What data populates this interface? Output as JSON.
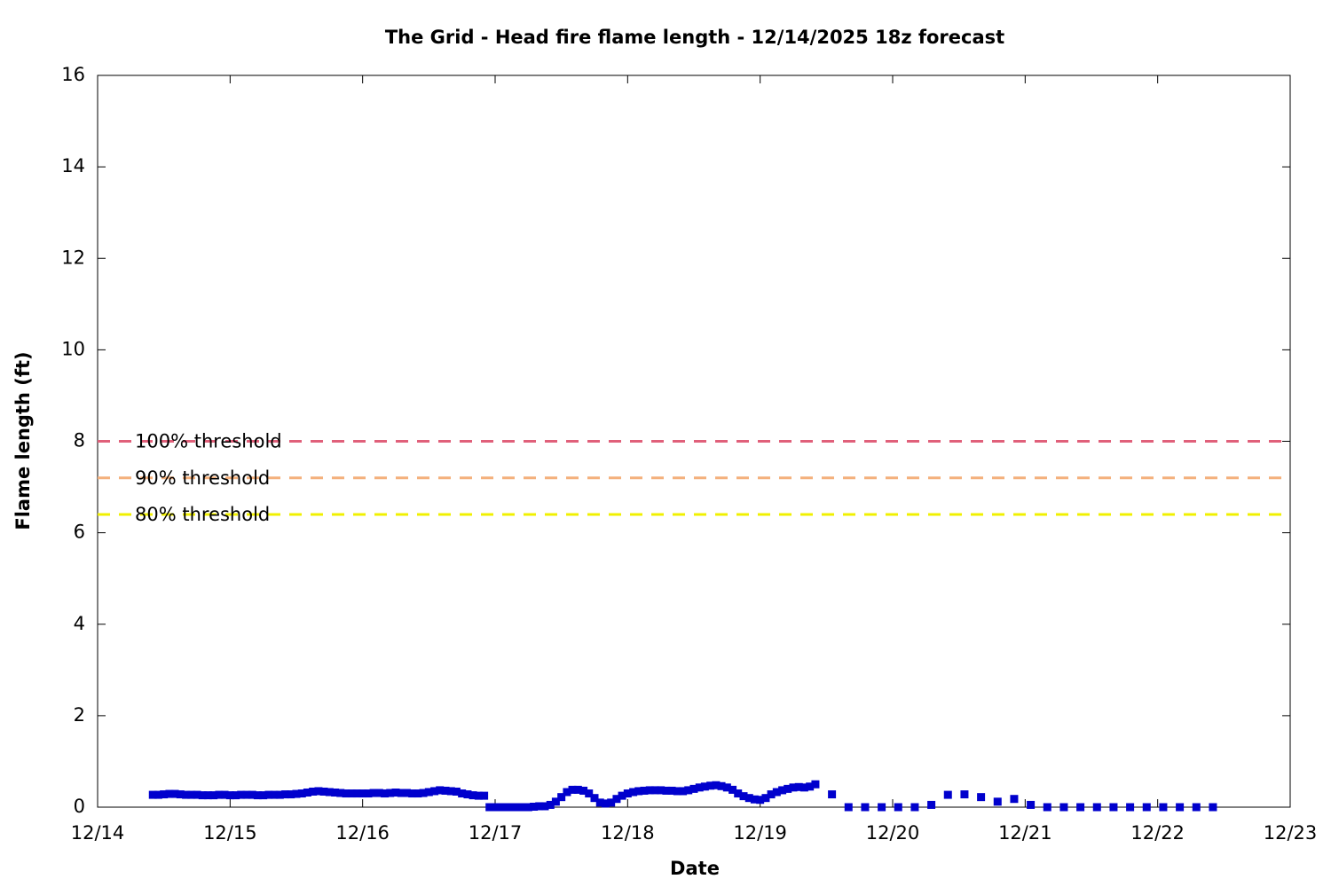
{
  "chart_data": {
    "type": "scatter",
    "title": "The Grid - Head fire flame length - 12/14/2025 18z forecast",
    "x_label": "Date",
    "y_label": "Flame length (ft)",
    "xlim": [
      14,
      23
    ],
    "xticks": [
      {
        "value": 14,
        "label": "12/14"
      },
      {
        "value": 15,
        "label": "12/15"
      },
      {
        "value": 16,
        "label": "12/16"
      },
      {
        "value": 17,
        "label": "12/17"
      },
      {
        "value": 18,
        "label": "12/18"
      },
      {
        "value": 19,
        "label": "12/19"
      },
      {
        "value": 20,
        "label": "12/20"
      },
      {
        "value": 21,
        "label": "12/21"
      },
      {
        "value": 22,
        "label": "12/22"
      },
      {
        "value": 23,
        "label": "12/23"
      }
    ],
    "ylim": [
      0,
      16
    ],
    "yticks": [
      0,
      2,
      4,
      6,
      8,
      10,
      12,
      14,
      16
    ],
    "thresholds": [
      {
        "name": "100% threshold",
        "value": 8,
        "color": "#e0607a"
      },
      {
        "name": "90% threshold",
        "value": 7.2,
        "color": "#f4b07c"
      },
      {
        "name": "80% threshold",
        "value": 6.4,
        "color": "#f0f000"
      }
    ],
    "series": [
      {
        "color": "#0000cd",
        "x": [
          14.417,
          14.458,
          14.5,
          14.542,
          14.583,
          14.625,
          14.667,
          14.708,
          14.75,
          14.792,
          14.833,
          14.875,
          14.917,
          14.958,
          15.0,
          15.042,
          15.083,
          15.125,
          15.167,
          15.208,
          15.25,
          15.292,
          15.333,
          15.375,
          15.417,
          15.458,
          15.5,
          15.542,
          15.583,
          15.625,
          15.667,
          15.708,
          15.75,
          15.792,
          15.833,
          15.875,
          15.917,
          15.958,
          16.0,
          16.042,
          16.083,
          16.125,
          16.167,
          16.208,
          16.25,
          16.292,
          16.333,
          16.375,
          16.417,
          16.458,
          16.5,
          16.542,
          16.583,
          16.625,
          16.667,
          16.708,
          16.75,
          16.792,
          16.833,
          16.875,
          16.917,
          16.958,
          17.0,
          17.042,
          17.083,
          17.125,
          17.167,
          17.208,
          17.25,
          17.292,
          17.333,
          17.375,
          17.417,
          17.458,
          17.5,
          17.542,
          17.583,
          17.625,
          17.667,
          17.708,
          17.75,
          17.792,
          17.833,
          17.875,
          17.917,
          17.958,
          18.0,
          18.042,
          18.083,
          18.125,
          18.167,
          18.208,
          18.25,
          18.292,
          18.333,
          18.375,
          18.417,
          18.458,
          18.5,
          18.542,
          18.583,
          18.625,
          18.667,
          18.708,
          18.75,
          18.792,
          18.833,
          18.875,
          18.917,
          18.958,
          19.0,
          19.042,
          19.083,
          19.125,
          19.167,
          19.208,
          19.25,
          19.292,
          19.333,
          19.375,
          19.417,
          19.542,
          19.667,
          19.792,
          19.917,
          20.042,
          20.167,
          20.292,
          20.417,
          20.542,
          20.667,
          20.792,
          20.917,
          21.042,
          21.167,
          21.292,
          21.417,
          21.542,
          21.667,
          21.792,
          21.917,
          22.042,
          22.167,
          22.292,
          22.417
        ],
        "values": [
          0.27,
          0.27,
          0.28,
          0.29,
          0.29,
          0.28,
          0.27,
          0.27,
          0.27,
          0.26,
          0.26,
          0.26,
          0.27,
          0.27,
          0.26,
          0.26,
          0.27,
          0.27,
          0.27,
          0.26,
          0.26,
          0.27,
          0.27,
          0.27,
          0.28,
          0.28,
          0.29,
          0.3,
          0.32,
          0.34,
          0.35,
          0.34,
          0.33,
          0.32,
          0.31,
          0.3,
          0.3,
          0.3,
          0.3,
          0.3,
          0.31,
          0.31,
          0.3,
          0.31,
          0.32,
          0.31,
          0.31,
          0.3,
          0.3,
          0.31,
          0.33,
          0.35,
          0.37,
          0.36,
          0.35,
          0.34,
          0.3,
          0.28,
          0.26,
          0.25,
          0.25,
          0,
          0,
          0,
          0,
          0,
          0,
          0,
          0,
          0.01,
          0.02,
          0.02,
          0.05,
          0.12,
          0.22,
          0.33,
          0.38,
          0.38,
          0.36,
          0.3,
          0.2,
          0.1,
          0.08,
          0.1,
          0.18,
          0.25,
          0.3,
          0.33,
          0.35,
          0.36,
          0.37,
          0.37,
          0.37,
          0.36,
          0.36,
          0.35,
          0.35,
          0.37,
          0.4,
          0.43,
          0.45,
          0.47,
          0.48,
          0.46,
          0.43,
          0.38,
          0.3,
          0.24,
          0.2,
          0.17,
          0.16,
          0.2,
          0.28,
          0.33,
          0.37,
          0.4,
          0.43,
          0.44,
          0.43,
          0.45,
          0.5,
          0.28,
          0,
          0,
          0,
          0,
          0,
          0.05,
          0.27,
          0.28,
          0.22,
          0.12,
          0.18,
          0.05,
          0,
          0,
          0,
          0,
          0,
          0,
          0,
          0,
          0,
          0,
          0
        ]
      }
    ]
  }
}
